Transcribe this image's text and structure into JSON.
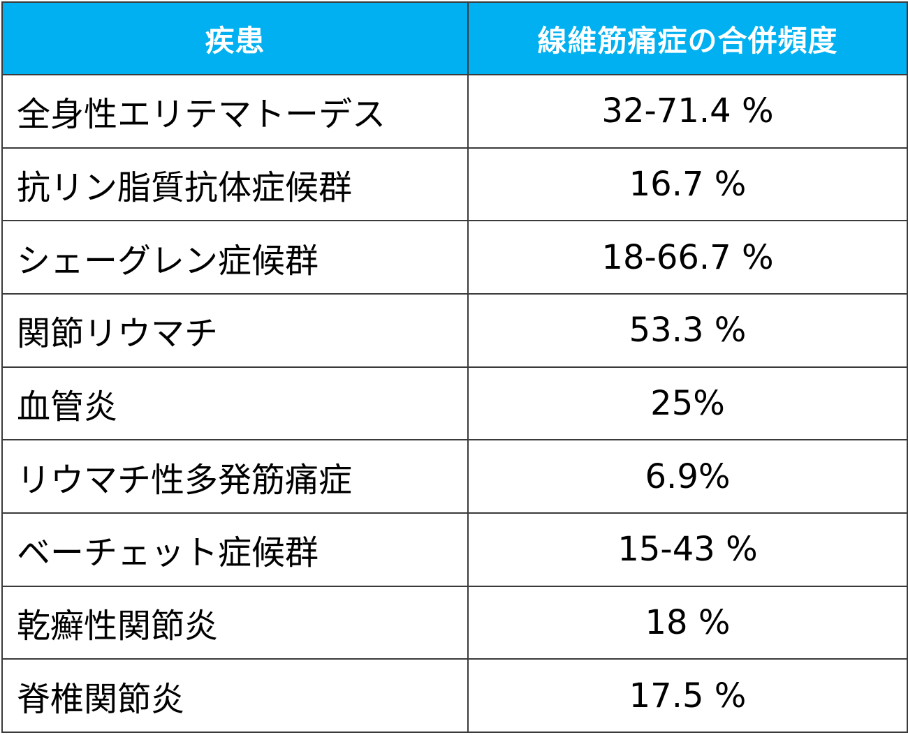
{
  "header": {
    "bg_color": "#00b0f0",
    "col_disease": "疾患",
    "col_frequency": "線維筋痛症の合併頻度"
  },
  "rows": [
    {
      "disease": "全身性エリテマトーデス",
      "frequency": "32-71.4 %"
    },
    {
      "disease": "抗リン脂質抗体症候群",
      "frequency": "16.7 %"
    },
    {
      "disease": "シェーグレン症候群",
      "frequency": "18-66.7 %"
    },
    {
      "disease": "関節リウマチ",
      "frequency": "53.3 %"
    },
    {
      "disease": "血管炎",
      "frequency": "25%"
    },
    {
      "disease": "リウマチ性多発筋痛症",
      "frequency": "6.9%"
    },
    {
      "disease": "ベーチェット症候群",
      "frequency": "15-43 %"
    },
    {
      "disease": "乾癬性関節炎",
      "frequency": "18 %"
    },
    {
      "disease": "脊椎関節炎",
      "frequency": "17.5 %"
    }
  ]
}
